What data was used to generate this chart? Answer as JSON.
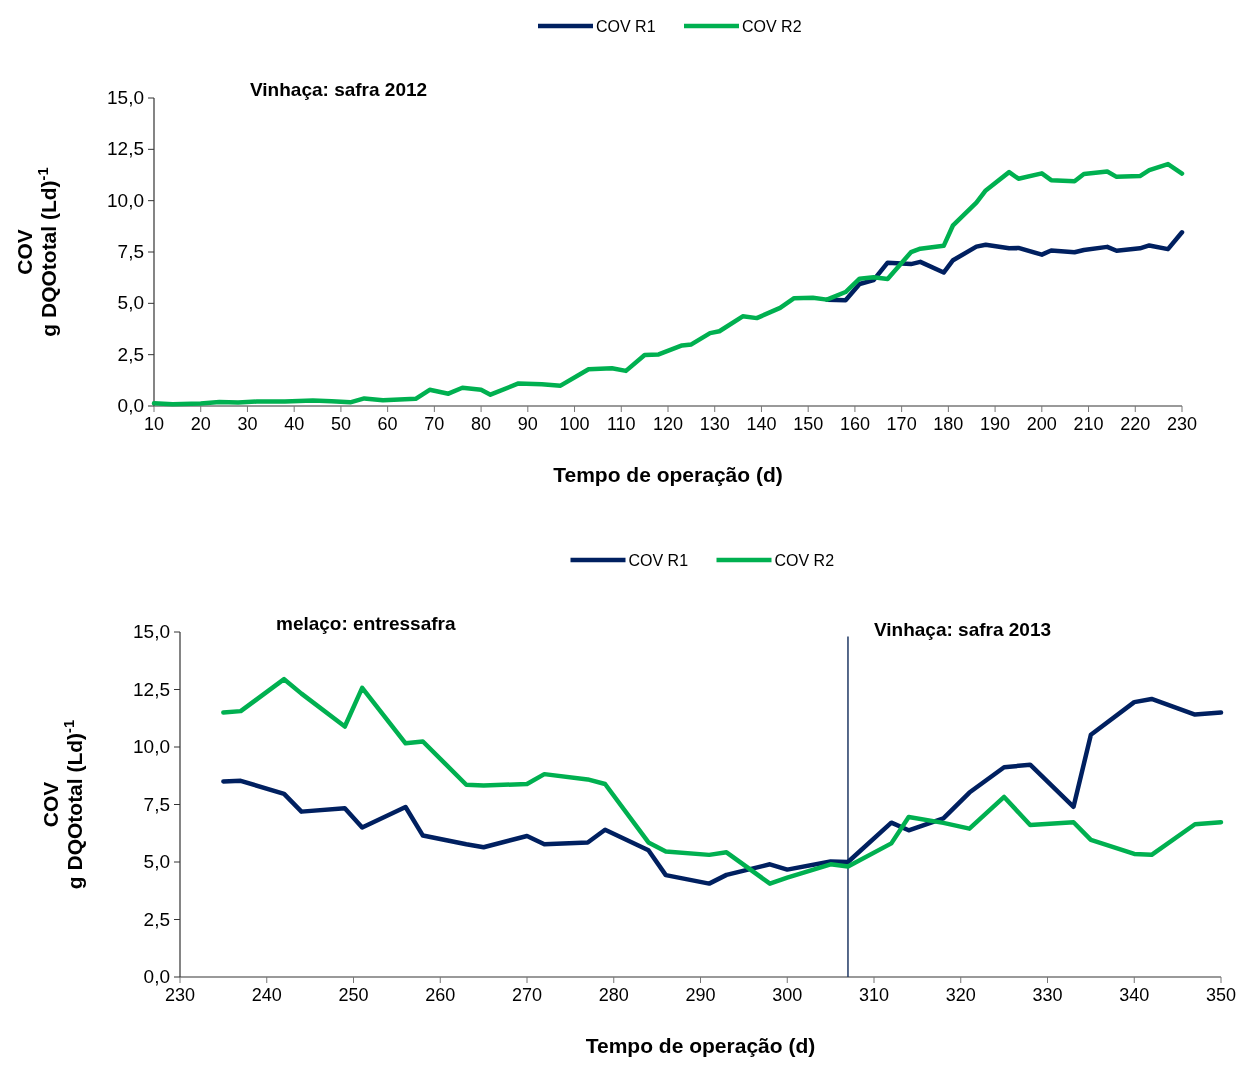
{
  "chart_data": [
    {
      "type": "line",
      "title": null,
      "annotations": [
        "Vinhaça: safra 2012"
      ],
      "xlabel": "Tempo de operação (d)",
      "ylabel": "COV\ng DQOtotal (Ld)$^{-1}$",
      "legend": "top",
      "marker": "none",
      "line_style": "solid",
      "grid": false,
      "x": [
        10,
        14,
        20,
        24,
        28,
        32,
        38,
        44,
        48,
        52,
        55,
        59,
        66,
        69,
        73,
        76,
        80,
        82,
        88,
        93,
        97,
        103,
        108,
        111,
        115,
        118,
        123,
        125,
        129,
        131,
        136,
        139,
        144,
        147,
        151,
        154,
        158,
        161,
        164,
        167,
        172,
        174,
        179,
        181,
        186,
        188,
        193,
        195,
        200,
        202,
        207,
        209,
        214,
        216,
        221,
        223,
        227,
        230
      ],
      "series": [
        {
          "name": "COV R1",
          "color": "#002060",
          "values": [
            null,
            null,
            null,
            null,
            null,
            null,
            null,
            null,
            null,
            null,
            null,
            null,
            null,
            null,
            null,
            null,
            null,
            null,
            null,
            null,
            null,
            null,
            null,
            null,
            null,
            null,
            null,
            null,
            null,
            null,
            null,
            null,
            null,
            null,
            null,
            5.18,
            5.15,
            5.94,
            6.13,
            6.98,
            6.91,
            7.02,
            6.5,
            7.1,
            7.76,
            7.85,
            7.68,
            7.7,
            7.37,
            7.57,
            7.49,
            7.6,
            7.75,
            7.56,
            7.68,
            7.82,
            7.64,
            8.46
          ]
        },
        {
          "name": "COV R2",
          "color": "#00b050",
          "values": [
            0.13,
            0.08,
            0.12,
            0.2,
            0.17,
            0.22,
            0.22,
            0.27,
            0.23,
            0.18,
            0.37,
            0.28,
            0.35,
            0.79,
            0.6,
            0.89,
            0.79,
            0.55,
            1.1,
            1.06,
            0.99,
            1.79,
            1.84,
            1.71,
            2.48,
            2.51,
            2.95,
            3.0,
            3.55,
            3.64,
            4.37,
            4.28,
            4.78,
            5.25,
            5.27,
            5.18,
            5.55,
            6.2,
            6.27,
            6.19,
            7.49,
            7.66,
            7.8,
            8.8,
            9.91,
            10.5,
            11.39,
            11.07,
            11.33,
            11.0,
            10.95,
            11.3,
            11.42,
            11.16,
            11.2,
            11.49,
            11.78,
            11.32
          ]
        }
      ],
      "xlim": [
        10,
        230
      ],
      "xticks": [
        10,
        20,
        30,
        40,
        50,
        60,
        70,
        80,
        90,
        100,
        110,
        120,
        130,
        140,
        150,
        160,
        170,
        180,
        190,
        200,
        210,
        220,
        230
      ],
      "ylim": [
        0,
        15
      ],
      "yticks": [
        {
          "value": 0,
          "label": "0,0"
        },
        {
          "value": 2.5,
          "label": "2,5"
        },
        {
          "value": 5,
          "label": "5,0"
        },
        {
          "value": 7.5,
          "label": "7,5"
        },
        {
          "value": 10,
          "label": "10,0"
        },
        {
          "value": 12.5,
          "label": "12,5"
        },
        {
          "value": 15,
          "label": "15,0"
        }
      ]
    },
    {
      "type": "line",
      "annotations": [
        "melaço: entressafra"
      ],
      "xlabel": "Tempo de operação (d)",
      "ylabel": "COV\ng DQOtotal (Ld)$^{-1}$",
      "legend": "top",
      "marker": "none",
      "line_style": "solid",
      "grid": false,
      "x": [
        235,
        237,
        242,
        244,
        249,
        251,
        256,
        258,
        263,
        265,
        270,
        272,
        277,
        279,
        284,
        286,
        291,
        293,
        298,
        300,
        305,
        307,
        312,
        314,
        318,
        321,
        325,
        328,
        333,
        335,
        340,
        342,
        347,
        350
      ],
      "series": [
        {
          "name": "COV R1",
          "color": "#002060",
          "values": [
            8.5,
            8.53,
            7.96,
            7.19,
            7.34,
            6.5,
            7.39,
            6.15,
            5.77,
            5.64,
            6.13,
            5.77,
            5.85,
            6.4,
            5.51,
            4.43,
            4.06,
            4.44,
            4.9,
            4.67,
            5.02,
            5.0,
            6.71,
            6.38,
            6.9,
            8.02,
            9.12,
            9.23,
            7.4,
            10.53,
            11.95,
            12.09,
            11.41,
            11.5
          ]
        },
        {
          "name": "COV R2",
          "color": "#00b050",
          "values": [
            11.5,
            11.56,
            12.95,
            12.32,
            10.89,
            12.57,
            10.16,
            10.24,
            8.36,
            8.33,
            8.39,
            8.82,
            8.59,
            8.39,
            5.85,
            5.46,
            5.31,
            5.42,
            4.06,
            4.32,
            4.9,
            4.8,
            5.81,
            6.96,
            6.7,
            6.45,
            7.83,
            6.61,
            6.73,
            5.96,
            5.35,
            5.31,
            6.64,
            6.73
          ]
        }
      ],
      "ref_lines": [
        {
          "axis": "x",
          "value": 307,
          "label": "Vinhaça: safra 2013",
          "color": "#1f3864"
        }
      ],
      "xlim": [
        230,
        350
      ],
      "xticks": [
        230,
        240,
        250,
        260,
        270,
        280,
        290,
        300,
        310,
        320,
        330,
        340,
        350
      ],
      "ylim": [
        0,
        15
      ],
      "yticks": [
        {
          "value": 0,
          "label": "0,0"
        },
        {
          "value": 2.5,
          "label": "2,5"
        },
        {
          "value": 5,
          "label": "5,0"
        },
        {
          "value": 7.5,
          "label": "7,5"
        },
        {
          "value": 10,
          "label": "10,0"
        },
        {
          "value": 12.5,
          "label": "12,5"
        },
        {
          "value": 15,
          "label": "15,0"
        }
      ]
    }
  ]
}
